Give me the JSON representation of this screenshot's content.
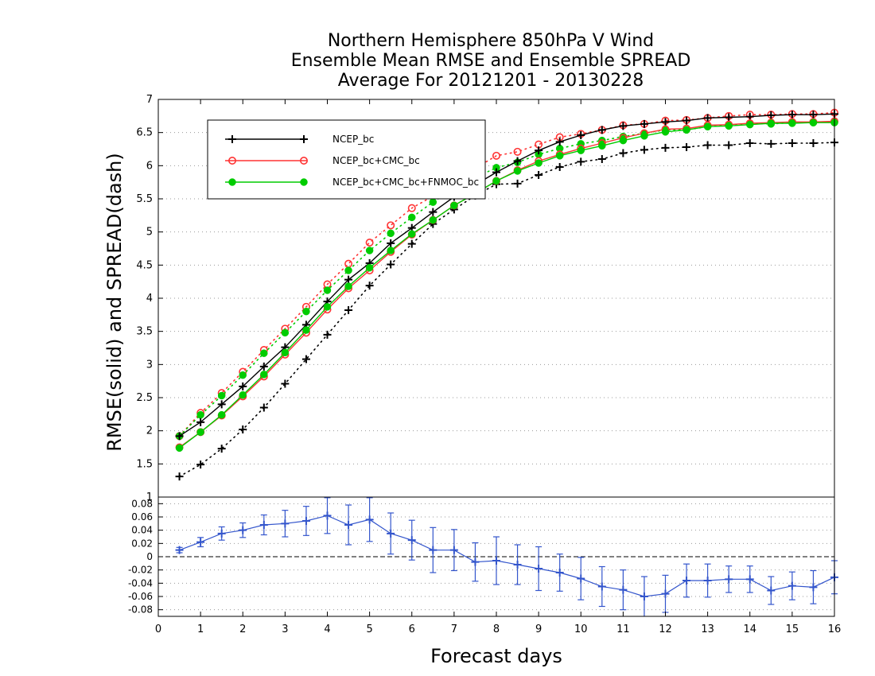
{
  "chart_data": [
    {
      "type": "line",
      "title": [
        "Northern Hemisphere 850hPa V Wind",
        "Ensemble Mean RMSE and Ensemble SPREAD",
        "Average For 20121201 - 20130228"
      ],
      "ylabel": "RMSE(solid) and SPREAD(dash)",
      "xlabel": "",
      "xlim": [
        0,
        16
      ],
      "ylim": [
        1,
        7
      ],
      "yticks": [
        "1",
        "1.5",
        "2",
        "2.5",
        "3",
        "3.5",
        "4",
        "4.5",
        "5",
        "5.5",
        "6",
        "6.5",
        "7"
      ],
      "grid": true,
      "legend_position": "top-left",
      "x": [
        0.5,
        1,
        1.5,
        2,
        2.5,
        3,
        3.5,
        4,
        4.5,
        5,
        5.5,
        6,
        6.5,
        7,
        7.5,
        8,
        8.5,
        9,
        9.5,
        10,
        10.5,
        11,
        11.5,
        12,
        12.5,
        13,
        13.5,
        14,
        14.5,
        15,
        15.5,
        16
      ],
      "series": [
        {
          "name": "NCEP_bc",
          "color": "#000000",
          "marker": "plus",
          "style": "solid",
          "values": [
            1.92,
            2.13,
            2.4,
            2.67,
            2.97,
            3.26,
            3.6,
            3.95,
            4.28,
            4.53,
            4.83,
            5.06,
            5.3,
            5.53,
            5.71,
            5.9,
            6.07,
            6.23,
            6.36,
            6.46,
            6.54,
            6.6,
            6.63,
            6.66,
            6.68,
            6.72,
            6.73,
            6.74,
            6.76,
            6.77,
            6.77,
            6.78
          ]
        },
        {
          "name": "NCEP_bc+CMC_bc",
          "color": "#ff3333",
          "marker": "open-circle",
          "style": "solid",
          "values": [
            1.75,
            1.98,
            2.23,
            2.52,
            2.82,
            3.15,
            3.48,
            3.83,
            4.15,
            4.42,
            4.7,
            4.96,
            5.18,
            5.4,
            5.58,
            5.77,
            5.93,
            6.07,
            6.17,
            6.26,
            6.34,
            6.42,
            6.49,
            6.55,
            6.56,
            6.61,
            6.62,
            6.64,
            6.65,
            6.66,
            6.66,
            6.67
          ]
        },
        {
          "name": "NCEP_bc+CMC_bc+FNMOC_bc",
          "color": "#00cc00",
          "marker": "filled-circle",
          "style": "solid",
          "values": [
            1.74,
            1.98,
            2.24,
            2.54,
            2.85,
            3.18,
            3.52,
            3.87,
            4.18,
            4.46,
            4.72,
            4.97,
            5.18,
            5.4,
            5.58,
            5.77,
            5.92,
            6.04,
            6.15,
            6.23,
            6.3,
            6.38,
            6.45,
            6.51,
            6.54,
            6.59,
            6.6,
            6.62,
            6.64,
            6.64,
            6.65,
            6.65
          ]
        },
        {
          "name": "NCEP_bc",
          "color": "#000000",
          "marker": "plus",
          "style": "dotted",
          "values": [
            1.31,
            1.49,
            1.73,
            2.02,
            2.35,
            2.71,
            3.08,
            3.45,
            3.82,
            4.19,
            4.51,
            4.82,
            5.12,
            5.34,
            5.55,
            5.72,
            5.73,
            5.86,
            5.98,
            6.06,
            6.1,
            6.19,
            6.24,
            6.27,
            6.28,
            6.31,
            6.31,
            6.34,
            6.33,
            6.34,
            6.34,
            6.35
          ]
        },
        {
          "name": "NCEP_bc+CMC_bc",
          "color": "#ff3333",
          "marker": "open-circle",
          "style": "dotted",
          "values": [
            1.92,
            2.27,
            2.57,
            2.89,
            3.22,
            3.54,
            3.87,
            4.21,
            4.52,
            4.84,
            5.1,
            5.36,
            5.54,
            5.76,
            5.96,
            6.15,
            6.21,
            6.32,
            6.43,
            6.48,
            6.54,
            6.61,
            6.63,
            6.68,
            6.69,
            6.72,
            6.75,
            6.77,
            6.77,
            6.78,
            6.78,
            6.8
          ]
        },
        {
          "name": "NCEP_bc+CMC_bc+FNMOC_bc",
          "color": "#00cc00",
          "marker": "filled-circle",
          "style": "dotted",
          "values": [
            1.92,
            2.24,
            2.53,
            2.84,
            3.17,
            3.48,
            3.8,
            4.12,
            4.42,
            4.72,
            4.98,
            5.22,
            5.45,
            5.65,
            5.82,
            5.97,
            6.05,
            6.17,
            6.26,
            6.33,
            6.38,
            6.44,
            6.49,
            6.54,
            6.54,
            6.59,
            6.61,
            6.64,
            6.63,
            6.65,
            6.65,
            6.67
          ]
        }
      ]
    },
    {
      "type": "line",
      "title": "",
      "xlabel": "Forecast days",
      "ylabel": "",
      "xlim": [
        0,
        16
      ],
      "ylim": [
        -0.09,
        0.09
      ],
      "xticks": [
        "0",
        "1",
        "2",
        "3",
        "4",
        "5",
        "6",
        "7",
        "8",
        "9",
        "10",
        "11",
        "12",
        "13",
        "14",
        "15",
        "16"
      ],
      "yticks": [
        "0.08",
        "0.06",
        "0.04",
        "0.02",
        "0",
        "-0.02",
        "-0.04",
        "-0.06",
        "-0.08"
      ],
      "grid": true,
      "reference_line": 0,
      "x": [
        0.5,
        1,
        1.5,
        2,
        2.5,
        3,
        3.5,
        4,
        4.5,
        5,
        5.5,
        6,
        6.5,
        7,
        7.5,
        8,
        8.5,
        9,
        9.5,
        10,
        10.5,
        11,
        11.5,
        12,
        12.5,
        13,
        13.5,
        14,
        14.5,
        15,
        15.5,
        16
      ],
      "series": [
        {
          "color": "#3355cc",
          "marker": "plus",
          "style": "solid",
          "values": [
            0.01,
            0.022,
            0.035,
            0.04,
            0.048,
            0.05,
            0.054,
            0.062,
            0.048,
            0.056,
            0.035,
            0.025,
            0.01,
            0.01,
            -0.008,
            -0.006,
            -0.012,
            -0.018,
            -0.024,
            -0.033,
            -0.045,
            -0.05,
            -0.06,
            -0.056,
            -0.036,
            -0.036,
            -0.034,
            -0.034,
            -0.051,
            -0.044,
            -0.046,
            -0.031
          ],
          "errors": [
            0.004,
            0.007,
            0.01,
            0.011,
            0.015,
            0.02,
            0.022,
            0.027,
            0.03,
            0.033,
            0.031,
            0.03,
            0.034,
            0.031,
            0.029,
            0.036,
            0.03,
            0.033,
            0.028,
            0.032,
            0.03,
            0.03,
            0.03,
            0.028,
            0.025,
            0.025,
            0.02,
            0.02,
            0.021,
            0.021,
            0.025,
            0.025
          ]
        }
      ]
    }
  ]
}
